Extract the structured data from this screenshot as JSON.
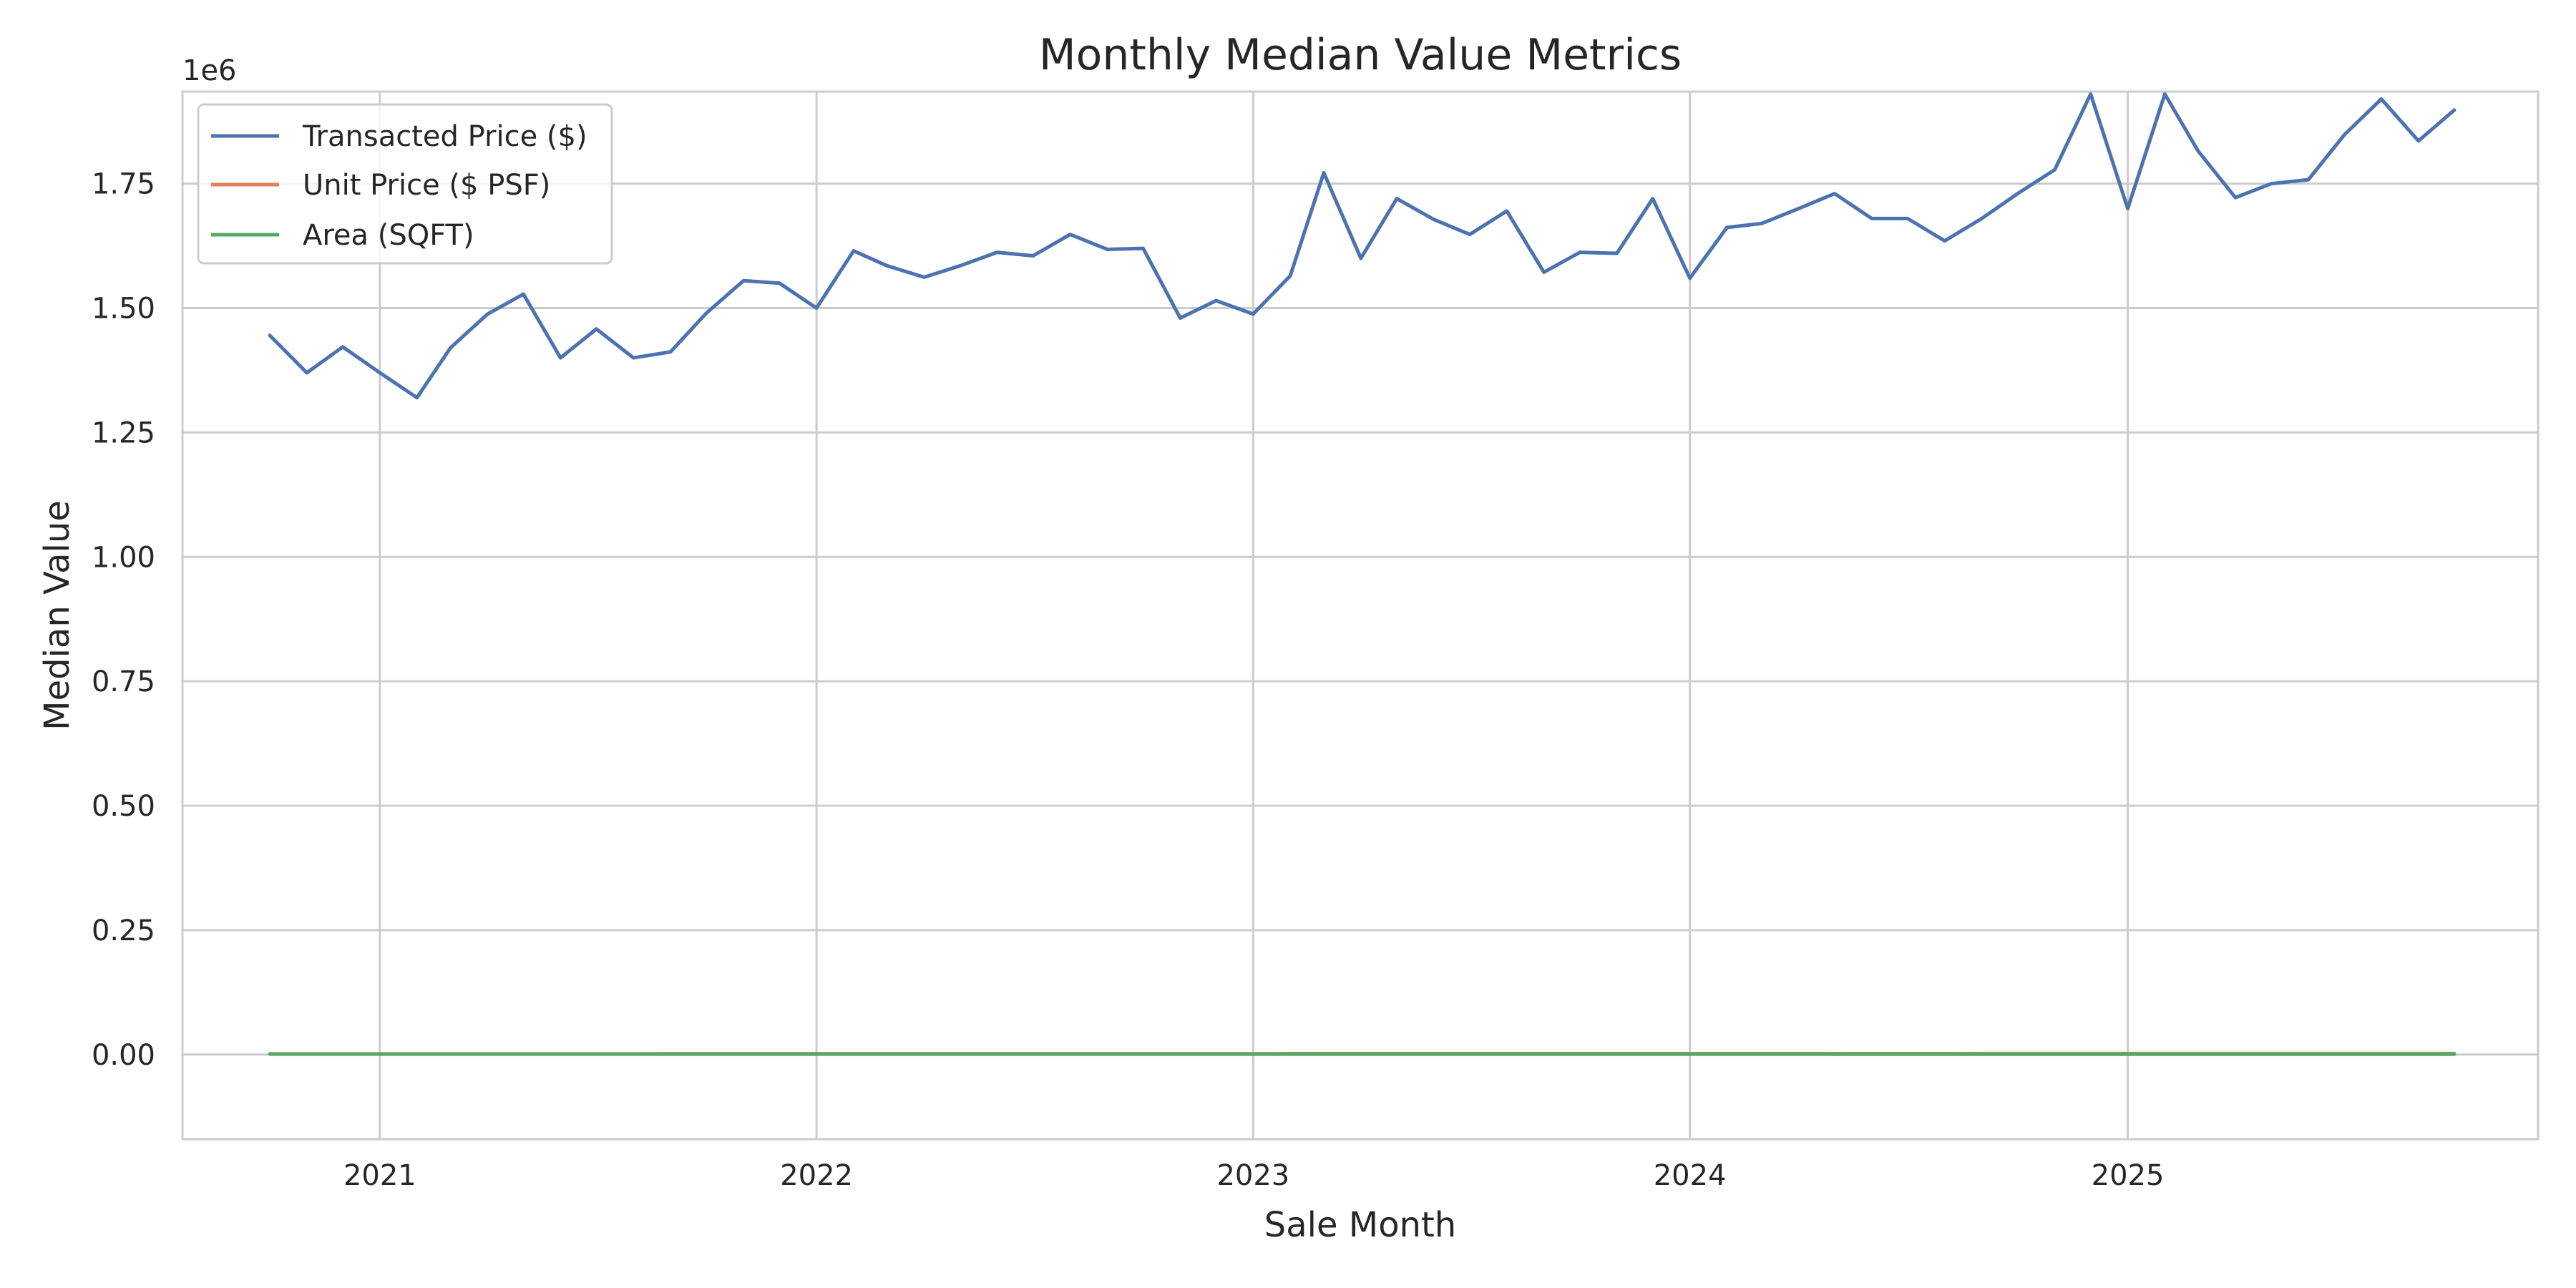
{
  "chart_data": {
    "type": "line",
    "title": "Monthly Median Value Metrics",
    "xlabel": "Sale Month",
    "ylabel": "Median Value",
    "y_offset_label": "1e6",
    "x_type": "date",
    "xlim": [
      "2020-07-20",
      "2025-12-10"
    ],
    "ylim": [
      -170000,
      1935000
    ],
    "x_ticks": [
      "2021-01-01",
      "2022-01-01",
      "2023-01-01",
      "2024-01-01",
      "2025-01-01"
    ],
    "x_tick_labels": [
      "2021",
      "2022",
      "2023",
      "2024",
      "2025"
    ],
    "y_ticks": [
      0,
      250000,
      500000,
      750000,
      1000000,
      1250000,
      1500000,
      1750000
    ],
    "y_tick_labels": [
      "0.00",
      "0.25",
      "0.50",
      "0.75",
      "1.00",
      "1.25",
      "1.50",
      "1.75"
    ],
    "grid": true,
    "legend_position": "upper-left",
    "x": [
      "2020-10-01",
      "2020-11-01",
      "2020-12-01",
      "2021-01-01",
      "2021-02-01",
      "2021-03-01",
      "2021-04-01",
      "2021-05-01",
      "2021-06-01",
      "2021-07-01",
      "2021-08-01",
      "2021-09-01",
      "2021-10-01",
      "2021-11-01",
      "2021-12-01",
      "2022-01-01",
      "2022-02-01",
      "2022-03-01",
      "2022-04-01",
      "2022-05-01",
      "2022-06-01",
      "2022-07-01",
      "2022-08-01",
      "2022-09-01",
      "2022-10-01",
      "2022-11-01",
      "2022-12-01",
      "2023-01-01",
      "2023-02-01",
      "2023-03-01",
      "2023-04-01",
      "2023-05-01",
      "2023-06-01",
      "2023-07-01",
      "2023-08-01",
      "2023-09-01",
      "2023-10-01",
      "2023-11-01",
      "2023-12-01",
      "2024-01-01",
      "2024-02-01",
      "2024-03-01",
      "2024-04-01",
      "2024-05-01",
      "2024-06-01",
      "2024-07-01",
      "2024-08-01",
      "2024-09-01",
      "2024-10-01",
      "2024-11-01",
      "2024-12-01",
      "2025-01-01",
      "2025-02-01",
      "2025-03-01",
      "2025-04-01",
      "2025-05-01",
      "2025-06-01",
      "2025-07-01",
      "2025-08-01",
      "2025-09-01",
      "2025-10-01"
    ],
    "series": [
      {
        "name": "Transacted Price ($)",
        "color": "#4c72b0",
        "values": [
          1445000,
          1370000,
          1422000,
          1370000,
          1320000,
          1420000,
          1488000,
          1528000,
          1400000,
          1458000,
          1400000,
          1412000,
          1490000,
          1555000,
          1550000,
          1500000,
          1615000,
          1585000,
          1562000,
          1585000,
          1612000,
          1605000,
          1648000,
          1618000,
          1620000,
          1480000,
          1515000,
          1488000,
          1565000,
          1772000,
          1600000,
          1720000,
          1678000,
          1648000,
          1695000,
          1572000,
          1612000,
          1610000,
          1720000,
          1560000,
          1662000,
          1670000,
          1700000,
          1730000,
          1680000,
          1680000,
          1635000,
          1680000,
          1730000,
          1778000,
          1930000,
          1700000,
          1930000,
          1815000,
          1722000,
          1750000,
          1758000,
          1848000,
          1920000,
          1836000,
          1898000
        ]
      },
      {
        "name": "Unit Price ($ PSF)",
        "color": "#dd8452",
        "values": [
          1450,
          1460,
          1470,
          1480,
          1490,
          1500,
          1510,
          1520,
          1530,
          1540,
          1550,
          1560,
          1570,
          1580,
          1590,
          1600,
          1610,
          1620,
          1630,
          1640,
          1650,
          1660,
          1670,
          1680,
          1690,
          1700,
          1710,
          1720,
          1730,
          1740,
          1750,
          1760,
          1770,
          1780,
          1790,
          1800,
          1810,
          1820,
          1830,
          1840,
          1850,
          1860,
          1870,
          1880,
          1890,
          1900,
          1910,
          1920,
          1930,
          1940,
          1950,
          1960,
          1970,
          1980,
          1990,
          2000,
          2010,
          2020,
          2030,
          2040,
          2050
        ]
      },
      {
        "name": "Area (SQFT)",
        "color": "#55a868",
        "values": [
          980,
          975,
          970,
          970,
          965,
          960,
          960,
          955,
          950,
          950,
          945,
          940,
          940,
          935,
          930,
          930,
          925,
          920,
          920,
          915,
          910,
          910,
          905,
          900,
          900,
          895,
          890,
          890,
          885,
          880,
          880,
          875,
          870,
          870,
          865,
          860,
          860,
          855,
          850,
          850,
          845,
          840,
          840,
          835,
          830,
          830,
          825,
          820,
          820,
          815,
          810,
          810,
          805,
          800,
          800,
          795,
          790,
          790,
          785,
          780,
          780
        ]
      }
    ]
  }
}
